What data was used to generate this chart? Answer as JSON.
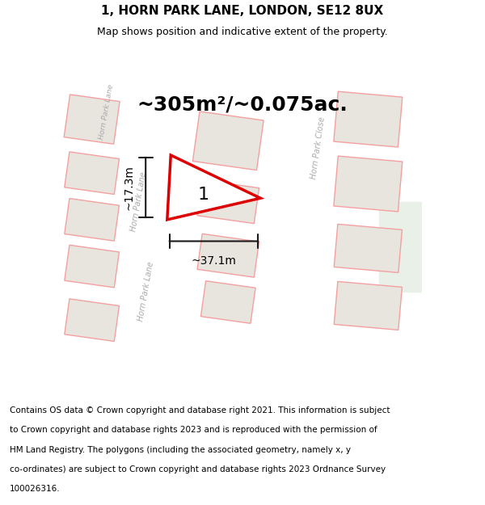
{
  "title": "1, HORN PARK LANE, LONDON, SE12 8UX",
  "subtitle": "Map shows position and indicative extent of the property.",
  "area_text": "~305m²/~0.075ac.",
  "label_number": "1",
  "dim_width": "~37.1m",
  "dim_height": "~17.3m",
  "footer_lines": [
    "Contains OS data © Crown copyright and database right 2021. This information is subject",
    "to Crown copyright and database rights 2023 and is reproduced with the permission of",
    "HM Land Registry. The polygons (including the associated geometry, namely x, y",
    "co-ordinates) are subject to Crown copyright and database rights 2023 Ordnance Survey",
    "100026316."
  ],
  "map_bg": "#f0ece6",
  "road_color": "#ffffff",
  "building_color": "#e8e4de",
  "pink_line_color": "#f4a0a0",
  "red_outline_color": "#dd0000",
  "dim_line_color": "#1a1a1a",
  "title_fontsize": 11,
  "subtitle_fontsize": 9,
  "area_fontsize": 18,
  "footer_fontsize": 7.5,
  "label_fontsize": 16,
  "dim_fontsize": 10,
  "footer_bg": "#ffffff",
  "green_area_color": "#e8f0e8",
  "road_label_color": "#aaaaaa"
}
